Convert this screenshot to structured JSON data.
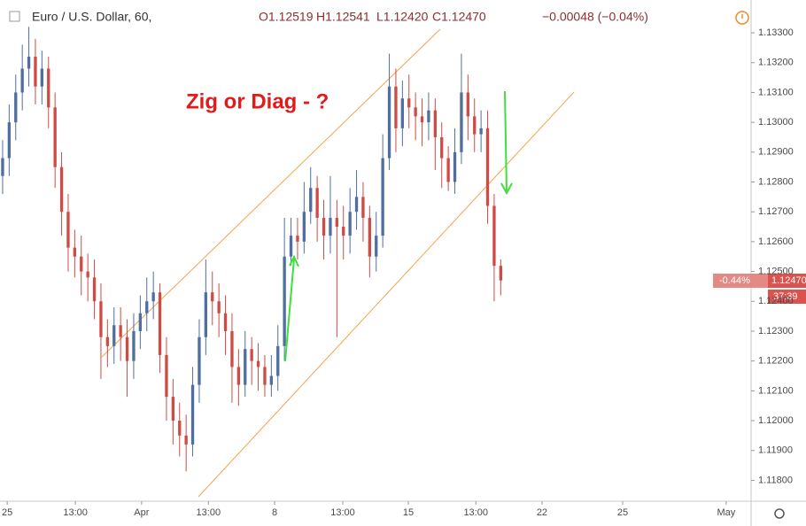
{
  "header": {
    "symbol": "Euro / U.S. Dollar, 60,",
    "open": "O1.12519",
    "high": "H1.12541",
    "low": "L1.12420",
    "close": "C1.12470",
    "change": "−0.00048 (−0.04%)"
  },
  "price_tag": {
    "percent": "-0.44%",
    "price": "1.12470",
    "countdown": "37:39"
  },
  "chart_data": {
    "type": "candlestick",
    "annotation": "Zig or Diag - ?",
    "up_color": "#4f6fa0",
    "down_color": "#cf4b45",
    "grid": false,
    "open": [
      1.1282,
      1.1288,
      1.13,
      1.131,
      1.1318,
      1.1322,
      1.1312,
      1.1318,
      1.1305,
      1.1285,
      1.127,
      1.1258,
      1.1255,
      1.125,
      1.1248,
      1.124,
      1.1228,
      1.1225,
      1.1232,
      1.1228,
      1.122,
      1.123,
      1.1236,
      1.124,
      1.1243,
      1.1222,
      1.1208,
      1.12,
      1.1195,
      1.1192,
      1.1212,
      1.1228,
      1.1243,
      1.124,
      1.1236,
      1.123,
      1.1218,
      1.1212,
      1.1224,
      1.122,
      1.1218,
      1.1212,
      1.1215,
      1.1225,
      1.1255,
      1.1262,
      1.126,
      1.127,
      1.1278,
      1.1268,
      1.1262,
      1.1268,
      1.1265,
      1.1262,
      1.127,
      1.1275,
      1.1268,
      1.1255,
      1.1262,
      1.1288,
      1.1312,
      1.1298,
      1.1308,
      1.1305,
      1.1302,
      1.13,
      1.1304,
      1.1295,
      1.1288,
      1.128,
      1.129,
      1.131,
      1.1302,
      1.1296,
      1.1298,
      1.1272,
      1.12519
    ],
    "high": [
      1.1294,
      1.1306,
      1.1316,
      1.1326,
      1.1332,
      1.1328,
      1.1324,
      1.1322,
      1.131,
      1.129,
      1.1276,
      1.1264,
      1.1262,
      1.1256,
      1.1254,
      1.1246,
      1.1234,
      1.1238,
      1.1238,
      1.1234,
      1.1236,
      1.1242,
      1.1248,
      1.125,
      1.1246,
      1.1228,
      1.1214,
      1.1206,
      1.1202,
      1.1218,
      1.1234,
      1.1254,
      1.125,
      1.1246,
      1.1242,
      1.1236,
      1.1224,
      1.123,
      1.1228,
      1.1226,
      1.1222,
      1.1222,
      1.1232,
      1.1268,
      1.1268,
      1.1268,
      1.128,
      1.1285,
      1.1282,
      1.1274,
      1.1282,
      1.1274,
      1.1272,
      1.1278,
      1.1284,
      1.128,
      1.1272,
      1.127,
      1.1296,
      1.1323,
      1.1318,
      1.1314,
      1.1316,
      1.131,
      1.1308,
      1.131,
      1.1308,
      1.13,
      1.1292,
      1.1298,
      1.1323,
      1.1316,
      1.1308,
      1.1304,
      1.1304,
      1.1276,
      1.12541
    ],
    "low": [
      1.1276,
      1.1282,
      1.1294,
      1.1304,
      1.1312,
      1.1306,
      1.1306,
      1.1298,
      1.1278,
      1.1262,
      1.125,
      1.1248,
      1.1242,
      1.124,
      1.1234,
      1.1214,
      1.1218,
      1.1219,
      1.122,
      1.1208,
      1.1214,
      1.1224,
      1.123,
      1.1234,
      1.1216,
      1.12,
      1.1192,
      1.1188,
      1.1183,
      1.1188,
      1.1206,
      1.1222,
      1.1232,
      1.1228,
      1.1222,
      1.1206,
      1.1205,
      1.1208,
      1.1212,
      1.121,
      1.1208,
      1.1208,
      1.121,
      1.122,
      1.1252,
      1.1254,
      1.1256,
      1.1266,
      1.126,
      1.1254,
      1.1256,
      1.1228,
      1.1254,
      1.1256,
      1.1264,
      1.126,
      1.1248,
      1.125,
      1.1258,
      1.1284,
      1.129,
      1.1292,
      1.1298,
      1.1294,
      1.1292,
      1.1294,
      1.1284,
      1.1278,
      1.1277,
      1.1276,
      1.1286,
      1.1294,
      1.129,
      1.129,
      1.1266,
      1.124,
      1.1242
    ],
    "close": [
      1.1288,
      1.13,
      1.131,
      1.1318,
      1.1322,
      1.1312,
      1.1318,
      1.1305,
      1.1285,
      1.127,
      1.1258,
      1.1255,
      1.125,
      1.1248,
      1.124,
      1.1228,
      1.1225,
      1.1232,
      1.1228,
      1.122,
      1.123,
      1.1236,
      1.124,
      1.1243,
      1.1222,
      1.1208,
      1.12,
      1.1195,
      1.1192,
      1.1212,
      1.1228,
      1.1243,
      1.124,
      1.1236,
      1.123,
      1.1218,
      1.1212,
      1.1224,
      1.122,
      1.1218,
      1.1212,
      1.1215,
      1.1225,
      1.1255,
      1.1262,
      1.126,
      1.127,
      1.1278,
      1.1268,
      1.1262,
      1.1268,
      1.1265,
      1.1262,
      1.127,
      1.1275,
      1.1268,
      1.1255,
      1.1262,
      1.1288,
      1.1312,
      1.1298,
      1.1308,
      1.1305,
      1.1302,
      1.13,
      1.1304,
      1.1295,
      1.1288,
      1.128,
      1.129,
      1.131,
      1.1302,
      1.1296,
      1.1298,
      1.1272,
      1.12519,
      1.1247
    ],
    "xlim": [
      -0.4,
      114.2
    ],
    "xticks": [
      {
        "value": 0.7,
        "label": "25"
      },
      {
        "value": 11.1,
        "label": "13:00"
      },
      {
        "value": 21.2,
        "label": "Apr"
      },
      {
        "value": 31.4,
        "label": "13:00"
      },
      {
        "value": 41.5,
        "label": "8"
      },
      {
        "value": 51.9,
        "label": "13:00"
      },
      {
        "value": 61.9,
        "label": "15"
      },
      {
        "value": 72.2,
        "label": "13:00"
      },
      {
        "value": 82.3,
        "label": "22"
      },
      {
        "value": 94.6,
        "label": "25"
      },
      {
        "value": 110.4,
        "label": "May"
      }
    ],
    "ylim": [
      1.1173,
      1.1341
    ],
    "yticks": [
      {
        "value": 1.118,
        "label": "1.11800"
      },
      {
        "value": 1.119,
        "label": "1.11900"
      },
      {
        "value": 1.12,
        "label": "1.12000"
      },
      {
        "value": 1.121,
        "label": "1.12100"
      },
      {
        "value": 1.122,
        "label": "1.12200"
      },
      {
        "value": 1.123,
        "label": "1.12300"
      },
      {
        "value": 1.124,
        "label": "1.12400"
      },
      {
        "value": 1.125,
        "label": "1.12500"
      },
      {
        "value": 1.126,
        "label": "1.12600"
      },
      {
        "value": 1.127,
        "label": "1.12700"
      },
      {
        "value": 1.128,
        "label": "1.12800"
      },
      {
        "value": 1.129,
        "label": "1.12900"
      },
      {
        "value": 1.13,
        "label": "1.13000"
      },
      {
        "value": 1.131,
        "label": "1.13100"
      },
      {
        "value": 1.132,
        "label": "1.13200"
      },
      {
        "value": 1.133,
        "label": "1.13300"
      }
    ]
  }
}
